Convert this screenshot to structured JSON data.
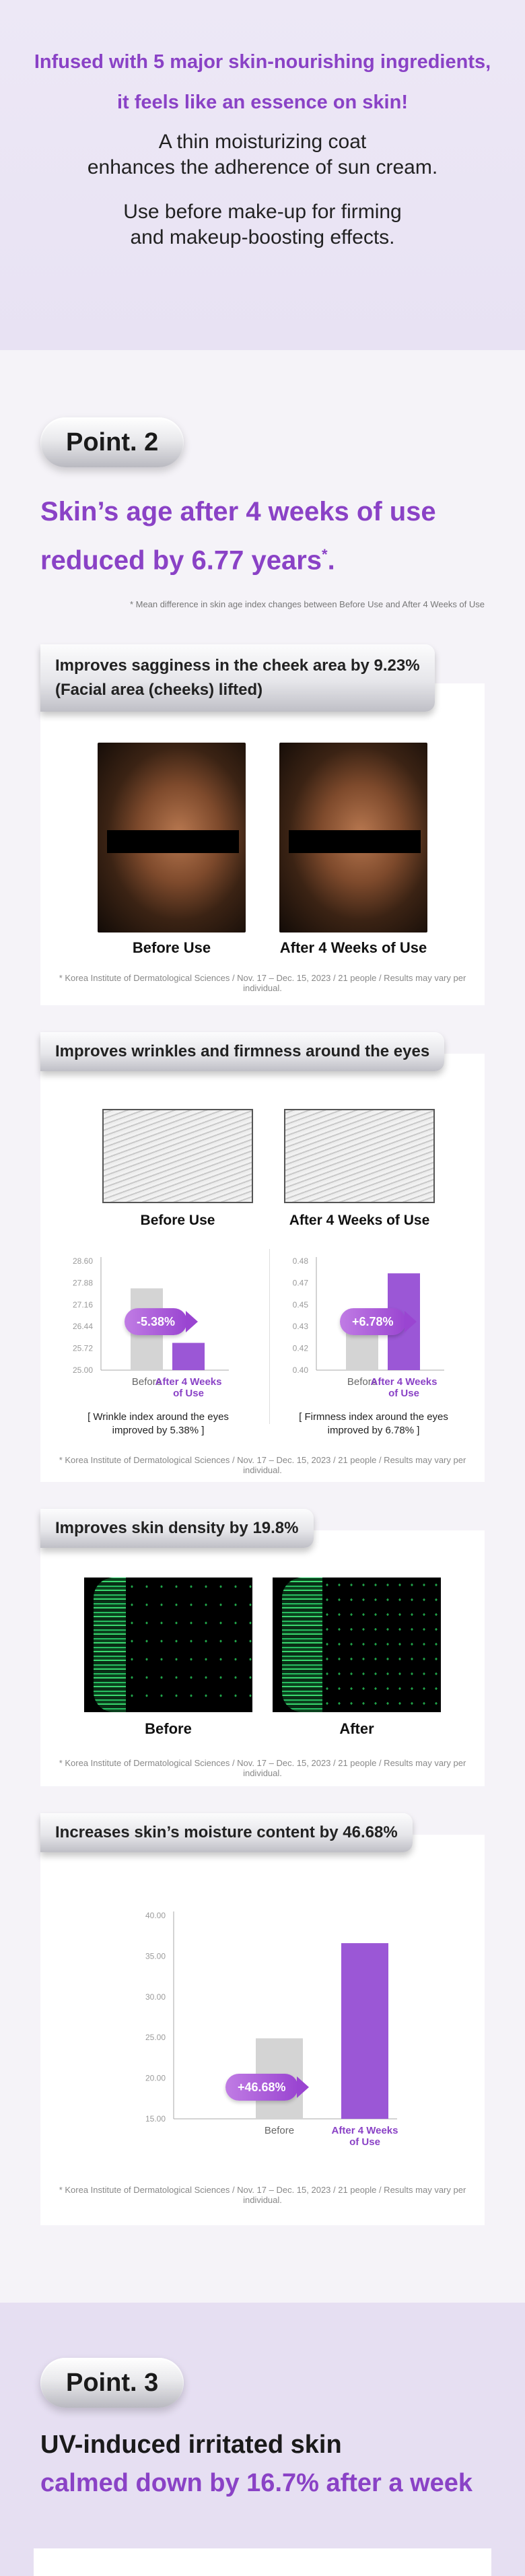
{
  "intro": {
    "purple_1": "Infused with 5 major skin-nourishing ingredients,",
    "purple_2": "it feels like an essence on skin!",
    "dark_1": "A thin moisturizing coat",
    "dark_2": "enhances the adherence of sun cream.",
    "dark_3": "Use before make-up for firming",
    "dark_4": "and makeup-boosting effects."
  },
  "point2": {
    "label": "Point. 2",
    "headline_1": "Skin’s age after 4 weeks of use",
    "headline_2": "reduced by 6.77 years",
    "headline_star": "*",
    "headline_end": ".",
    "footnote": "* Mean difference in skin age index changes between Before Use and After 4 Weeks of Use"
  },
  "source_note": "* Korea Institute of Dermatological Sciences / Nov. 17 – Dec. 15, 2023 / 21 people / Results may vary per individual.",
  "sagging": {
    "tab_1": "Improves sagginess in the cheek area by 9.23%",
    "tab_2": "(Facial area (cheeks) lifted)",
    "before": "Before Use",
    "after": "After 4 Weeks of Use"
  },
  "wrinkles": {
    "tab": "Improves wrinkles and firmness around the eyes",
    "before": "Before Use",
    "after": "After 4 Weeks of Use",
    "left_caption_1": "[ Wrinkle index around the eyes",
    "left_caption_2": "improved by 5.38% ]",
    "right_caption_1": "[ Firmness index around the eyes",
    "right_caption_2": "improved by 6.78% ]"
  },
  "density": {
    "tab": "Improves skin density by 19.8%",
    "before": "Before",
    "after": "After"
  },
  "moisture": {
    "tab": "Increases skin’s moisture content by 46.68%"
  },
  "chart_data": [
    {
      "type": "bar",
      "categories": [
        "Before",
        "After 4 Weeks of Use"
      ],
      "values": [
        27.7,
        25.9
      ],
      "yticks": [
        "28.60",
        "27.88",
        "27.16",
        "26.44",
        "25.72",
        "25.00"
      ],
      "ylim": [
        25.0,
        28.6
      ],
      "badge": "-5.38%",
      "colors": [
        "#d4d4d4",
        "#9b57d6"
      ]
    },
    {
      "type": "bar",
      "categories": [
        "Before",
        "After 4 Weeks of Use"
      ],
      "values": [
        0.441,
        0.471
      ],
      "yticks": [
        "0.48",
        "0.47",
        "0.45",
        "0.43",
        "0.42",
        "0.40"
      ],
      "ylim": [
        0.4,
        0.48
      ],
      "badge": "+6.78%",
      "colors": [
        "#d4d4d4",
        "#9b57d6"
      ]
    },
    {
      "type": "bar",
      "categories": [
        "Before",
        "After 4 Weeks of Use"
      ],
      "values": [
        24.9,
        36.6
      ],
      "yticks": [
        "40.00",
        "35.00",
        "30.00",
        "25.00",
        "20.00",
        "15.00"
      ],
      "ylim": [
        15.0,
        40.0
      ],
      "badge": "+46.68%",
      "colors": [
        "#d4d4d4",
        "#9b57d6"
      ]
    }
  ],
  "point3": {
    "label": "Point. 3",
    "line_1": "UV-induced irritated skin",
    "line_2": "calmed down by 16.7% after a week"
  }
}
